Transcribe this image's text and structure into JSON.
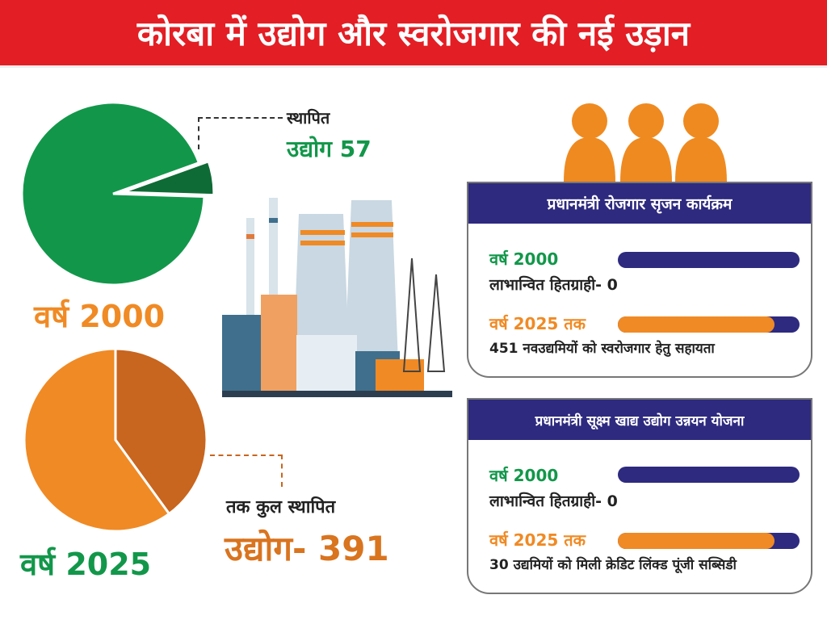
{
  "title": "कोरबा में उद्योग और स्वरोजगार की नई उड़ान",
  "left": {
    "pie2000_label_line1": "स्थापित",
    "pie2000_label_line2": "उद्योग 57",
    "year2000": "वर्ष 2000",
    "pie2025_label_line1": "तक कुल स्थापित",
    "pie2025_label_line2": "उद्योग- 391",
    "year2025": "वर्ष 2025"
  },
  "cards": [
    {
      "title": "प्रधानमंत्री रोजगार सृजन कार्यक्रम",
      "row1_year": "वर्ष 2000",
      "row1_text": "लाभान्वित हितग्राही- 0",
      "row1_progress": 0,
      "row2_year": "वर्ष 2025 तक",
      "row2_text": "451 नवउद्यमियों को स्वरोजगार हेतु सहायता",
      "row2_progress": 0.86
    },
    {
      "title": "प्रधानमंत्री सूक्ष्म खाद्य उद्योग उन्नयन योजना",
      "row1_year": "वर्ष 2000",
      "row1_text": "लाभान्वित हितग्राही- 0",
      "row1_progress": 0,
      "row2_year": "वर्ष 2025 तक",
      "row2_text": "30 उद्यमियों को मिली क्रेडिट लिंक्ड पूंजी सब्सिडी",
      "row2_progress": 0.86
    }
  ],
  "colors": {
    "header": "#e31e24",
    "navy": "#2e2a7f",
    "green": "#12974a",
    "dark_green": "#0f6b35",
    "orange": "#f08a24",
    "dark_orange": "#c8651e"
  },
  "icons": [
    "people-icon",
    "factory-illustration"
  ],
  "chart_data": [
    {
      "type": "pie",
      "slices": [
        {
          "value": 94,
          "color": "#12974a"
        },
        {
          "value": 6,
          "color": "#0f6b35"
        }
      ],
      "annotation": "उद्योग 57"
    },
    {
      "type": "pie",
      "slices": [
        {
          "value": 60,
          "color": "#f08a24"
        },
        {
          "value": 40,
          "color": "#c8651e"
        }
      ],
      "annotation": "उद्योग- 391"
    }
  ]
}
